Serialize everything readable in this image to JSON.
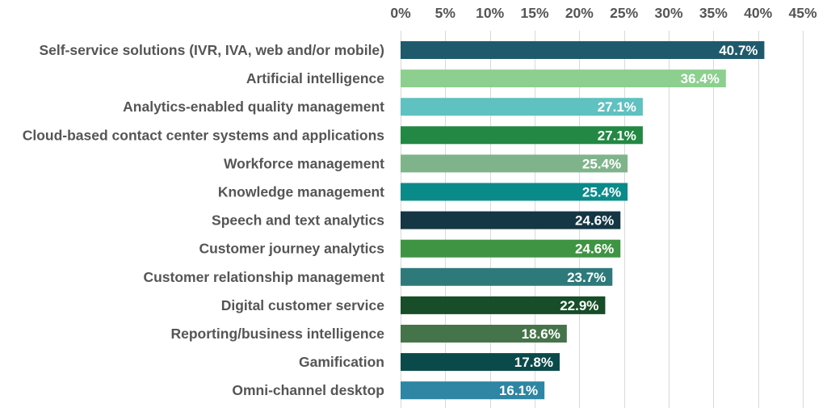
{
  "chart_data": {
    "type": "bar",
    "orientation": "horizontal",
    "title": "",
    "xlabel": "",
    "ylabel": "",
    "xlim": [
      0,
      45
    ],
    "x_ticks": [
      0,
      5,
      10,
      15,
      20,
      25,
      30,
      35,
      40,
      45
    ],
    "x_tick_labels": [
      "0%",
      "5%",
      "10%",
      "15%",
      "20%",
      "25%",
      "30%",
      "35%",
      "40%",
      "45%"
    ],
    "x_axis_position": "top",
    "grid": true,
    "legend": "none",
    "categories": [
      "Self-service solutions (IVR, IVA, web and/or mobile)",
      "Artificial intelligence",
      "Analytics-enabled quality management",
      "Cloud-based contact center systems and applications",
      "Workforce management",
      "Knowledge management",
      "Speech and text analytics",
      "Customer journey analytics",
      "Customer relationship management",
      "Digital customer service",
      "Reporting/business intelligence",
      "Gamification",
      "Omni-channel desktop"
    ],
    "values": [
      40.7,
      36.4,
      27.1,
      27.1,
      25.4,
      25.4,
      24.6,
      24.6,
      23.7,
      22.9,
      18.6,
      17.8,
      16.1
    ],
    "value_labels": [
      "40.7%",
      "36.4%",
      "27.1%",
      "27.1%",
      "25.4%",
      "25.4%",
      "24.6%",
      "24.6%",
      "23.7%",
      "22.9%",
      "18.6%",
      "17.8%",
      "16.1%"
    ],
    "colors": [
      "#1e5a6c",
      "#8ccf8e",
      "#5fc1c0",
      "#238843",
      "#7fb48b",
      "#0b8a8a",
      "#153644",
      "#3f9444",
      "#2e7a7a",
      "#174d28",
      "#46744a",
      "#0b4a4a",
      "#2e85a4"
    ]
  }
}
